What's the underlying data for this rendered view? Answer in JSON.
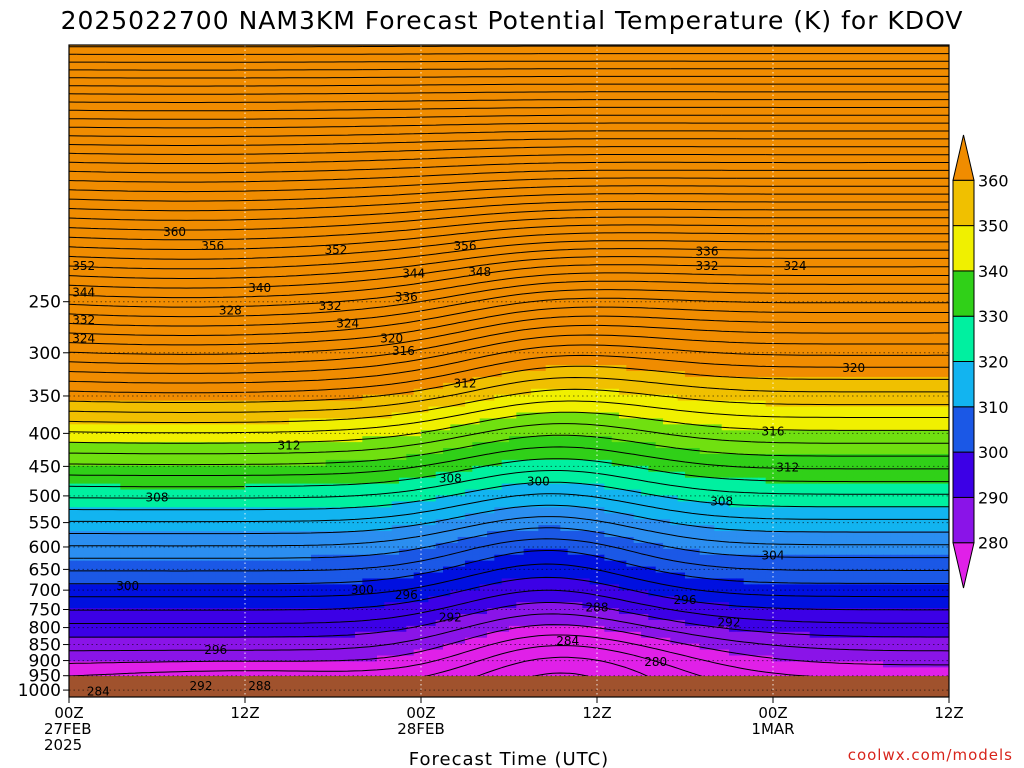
{
  "title": "2025022700 NAM3KM Forecast Potential Temperature (K) for KDOV",
  "credit": "coolwx.com/models",
  "colors": {
    "bands": [
      "#e020e8",
      "#8a14e8",
      "#3c00e6",
      "#0010e0",
      "#1b58e6",
      "#2b8ef0",
      "#12b4f0",
      "#00f0a0",
      "#30d018",
      "#70e010",
      "#f0f000",
      "#f0c000",
      "#f08c00"
    ],
    "ground": "#a0522d",
    "contour": "#000000"
  },
  "chart_data": {
    "type": "heatmap",
    "title": "2025022700 NAM3KM Forecast Potential Temperature (K) for KDOV",
    "xlabel": "Forecast Time (UTC)",
    "ylabel": "",
    "x_range_hours": [
      0,
      60
    ],
    "y_range_hpa": [
      1025,
      100
    ],
    "y_scale": "log",
    "grid": true,
    "x_ticks": [
      {
        "hour": 0,
        "lines": [
          "00Z",
          "27FEB",
          "2025"
        ]
      },
      {
        "hour": 12,
        "lines": [
          "12Z"
        ]
      },
      {
        "hour": 24,
        "lines": [
          "00Z",
          "28FEB"
        ]
      },
      {
        "hour": 36,
        "lines": [
          "12Z"
        ]
      },
      {
        "hour": 48,
        "lines": [
          "00Z",
          "1MAR"
        ]
      },
      {
        "hour": 60,
        "lines": [
          "12Z"
        ]
      }
    ],
    "y_ticks": [
      "250",
      "300",
      "350",
      "400",
      "450",
      "500",
      "550",
      "600",
      "650",
      "700",
      "750",
      "800",
      "850",
      "900",
      "950",
      "1000"
    ],
    "colorbar": {
      "levels": [
        280,
        290,
        300,
        310,
        320,
        330,
        340,
        350,
        360
      ],
      "labels": [
        "280",
        "290",
        "300",
        "310",
        "320",
        "330",
        "340",
        "350",
        "360"
      ]
    },
    "contour_interval_K": 4,
    "contour_labels": [
      {
        "text": "360",
        "hour": 7.2,
        "hpa": 195
      },
      {
        "text": "356",
        "hour": 9.8,
        "hpa": 205
      },
      {
        "text": "352",
        "hour": 1.0,
        "hpa": 220
      },
      {
        "text": "352",
        "hour": 18.2,
        "hpa": 208
      },
      {
        "text": "356",
        "hour": 27.0,
        "hpa": 205
      },
      {
        "text": "348",
        "hour": 28.0,
        "hpa": 225
      },
      {
        "text": "344",
        "hour": 23.5,
        "hpa": 226
      },
      {
        "text": "340",
        "hour": 13.0,
        "hpa": 238
      },
      {
        "text": "344",
        "hour": 1.0,
        "hpa": 242
      },
      {
        "text": "336",
        "hour": 23.0,
        "hpa": 246
      },
      {
        "text": "332",
        "hour": 17.8,
        "hpa": 254
      },
      {
        "text": "328",
        "hour": 11.0,
        "hpa": 258
      },
      {
        "text": "332",
        "hour": 1.0,
        "hpa": 267
      },
      {
        "text": "324",
        "hour": 19.0,
        "hpa": 270
      },
      {
        "text": "324",
        "hour": 1.0,
        "hpa": 285
      },
      {
        "text": "320",
        "hour": 22.0,
        "hpa": 285
      },
      {
        "text": "316",
        "hour": 22.8,
        "hpa": 298
      },
      {
        "text": "336",
        "hour": 43.5,
        "hpa": 209
      },
      {
        "text": "332",
        "hour": 43.5,
        "hpa": 220
      },
      {
        "text": "324",
        "hour": 49.5,
        "hpa": 220
      },
      {
        "text": "320",
        "hour": 53.5,
        "hpa": 317
      },
      {
        "text": "312",
        "hour": 27.0,
        "hpa": 335
      },
      {
        "text": "316",
        "hour": 48.0,
        "hpa": 397
      },
      {
        "text": "312",
        "hour": 15.0,
        "hpa": 418
      },
      {
        "text": "312",
        "hour": 49.0,
        "hpa": 452
      },
      {
        "text": "308",
        "hour": 26.0,
        "hpa": 470
      },
      {
        "text": "300",
        "hour": 32.0,
        "hpa": 475
      },
      {
        "text": "308",
        "hour": 6.0,
        "hpa": 503
      },
      {
        "text": "308",
        "hour": 44.5,
        "hpa": 510
      },
      {
        "text": "304",
        "hour": 48.0,
        "hpa": 618
      },
      {
        "text": "300",
        "hour": 4.0,
        "hpa": 690
      },
      {
        "text": "300",
        "hour": 20.0,
        "hpa": 700
      },
      {
        "text": "296",
        "hour": 23.0,
        "hpa": 712
      },
      {
        "text": "296",
        "hour": 42.0,
        "hpa": 725
      },
      {
        "text": "292",
        "hour": 26.0,
        "hpa": 772
      },
      {
        "text": "288",
        "hour": 36.0,
        "hpa": 745
      },
      {
        "text": "292",
        "hour": 45.0,
        "hpa": 785
      },
      {
        "text": "284",
        "hour": 34.0,
        "hpa": 840
      },
      {
        "text": "296",
        "hour": 10.0,
        "hpa": 866
      },
      {
        "text": "280",
        "hour": 40.0,
        "hpa": 905
      },
      {
        "text": "292",
        "hour": 9.0,
        "hpa": 985
      },
      {
        "text": "288",
        "hour": 13.0,
        "hpa": 985
      },
      {
        "text": "284",
        "hour": 2.0,
        "hpa": 1005
      }
    ]
  }
}
